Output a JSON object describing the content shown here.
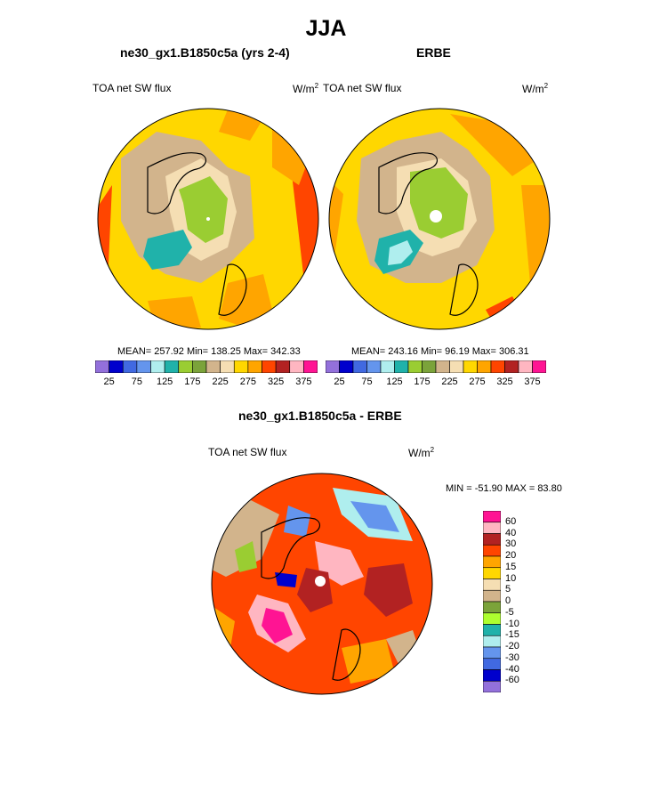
{
  "title": "JJA",
  "panels": [
    {
      "title": "ne30_gx1.B1850c5a (yrs 2-4)",
      "left_label": "TOA net SW flux",
      "units": "W/m",
      "units_sup": "2",
      "stats": "MEAN= 257.92  Min= 138.25  Max= 342.33"
    },
    {
      "title": "ERBE",
      "left_label": "TOA net SW flux",
      "units": "W/m",
      "units_sup": "2",
      "stats": "MEAN= 243.16  Min=  96.19  Max= 306.31"
    },
    {
      "title": "ne30_gx1.B1850c5a - ERBE",
      "left_label": "TOA net SW flux",
      "units": "W/m",
      "units_sup": "2",
      "stats": "MIN = -51.90 MAX =  83.80"
    }
  ],
  "chart_data": [
    {
      "type": "heatmap",
      "projection": "polar stereographic (north)",
      "title": "ne30_gx1.B1850c5a (yrs 2-4)",
      "variable": "TOA net SW flux",
      "units": "W/m2",
      "mean": 257.92,
      "min": 138.25,
      "max": 342.33,
      "colorbar_levels": [
        25,
        50,
        75,
        100,
        125,
        150,
        175,
        200,
        225,
        250,
        275,
        300,
        325,
        350,
        375
      ],
      "colorbar_tick_labels": [
        "25",
        "75",
        "125",
        "175",
        "225",
        "275",
        "325",
        "375"
      ]
    },
    {
      "type": "heatmap",
      "projection": "polar stereographic (north)",
      "title": "ERBE",
      "variable": "TOA net SW flux",
      "units": "W/m2",
      "mean": 243.16,
      "min": 96.19,
      "max": 306.31,
      "colorbar_levels": [
        25,
        50,
        75,
        100,
        125,
        150,
        175,
        200,
        225,
        250,
        275,
        300,
        325,
        350,
        375
      ],
      "colorbar_tick_labels": [
        "25",
        "75",
        "125",
        "175",
        "225",
        "275",
        "325",
        "375"
      ]
    },
    {
      "type": "heatmap",
      "projection": "polar stereographic (north)",
      "title": "ne30_gx1.B1850c5a - ERBE",
      "variable": "TOA net SW flux",
      "units": "W/m2",
      "min": -51.9,
      "max": 83.8,
      "colorbar_levels": [
        60,
        40,
        30,
        20,
        15,
        10,
        5,
        0,
        -5,
        -10,
        -15,
        -20,
        -30,
        -40,
        -60
      ],
      "colorbar_tick_labels": [
        "60",
        "40",
        "30",
        "20",
        "15",
        "10",
        "5",
        "0",
        "-5",
        "-10",
        "-15",
        "-20",
        "-30",
        "-40",
        "-60"
      ]
    }
  ],
  "colors": {
    "abs_palette": [
      "#9370db",
      "#0000cd",
      "#4169e1",
      "#6495ed",
      "#afeeee",
      "#20b2aa",
      "#9acd32",
      "#7ba33a",
      "#d2b48c",
      "#f5deb3",
      "#ffd700",
      "#ffa500",
      "#ff4500",
      "#b22222",
      "#ffb6c1",
      "#ff1493"
    ],
    "diff_palette": [
      "#ff1493",
      "#ffb6c1",
      "#b22222",
      "#ff4500",
      "#ffa500",
      "#ffd700",
      "#f5deb3",
      "#d2b48c",
      "#7ba33a",
      "#adff2f",
      "#20b2aa",
      "#afeeee",
      "#6495ed",
      "#4169e1",
      "#0000cd",
      "#9370db"
    ]
  }
}
